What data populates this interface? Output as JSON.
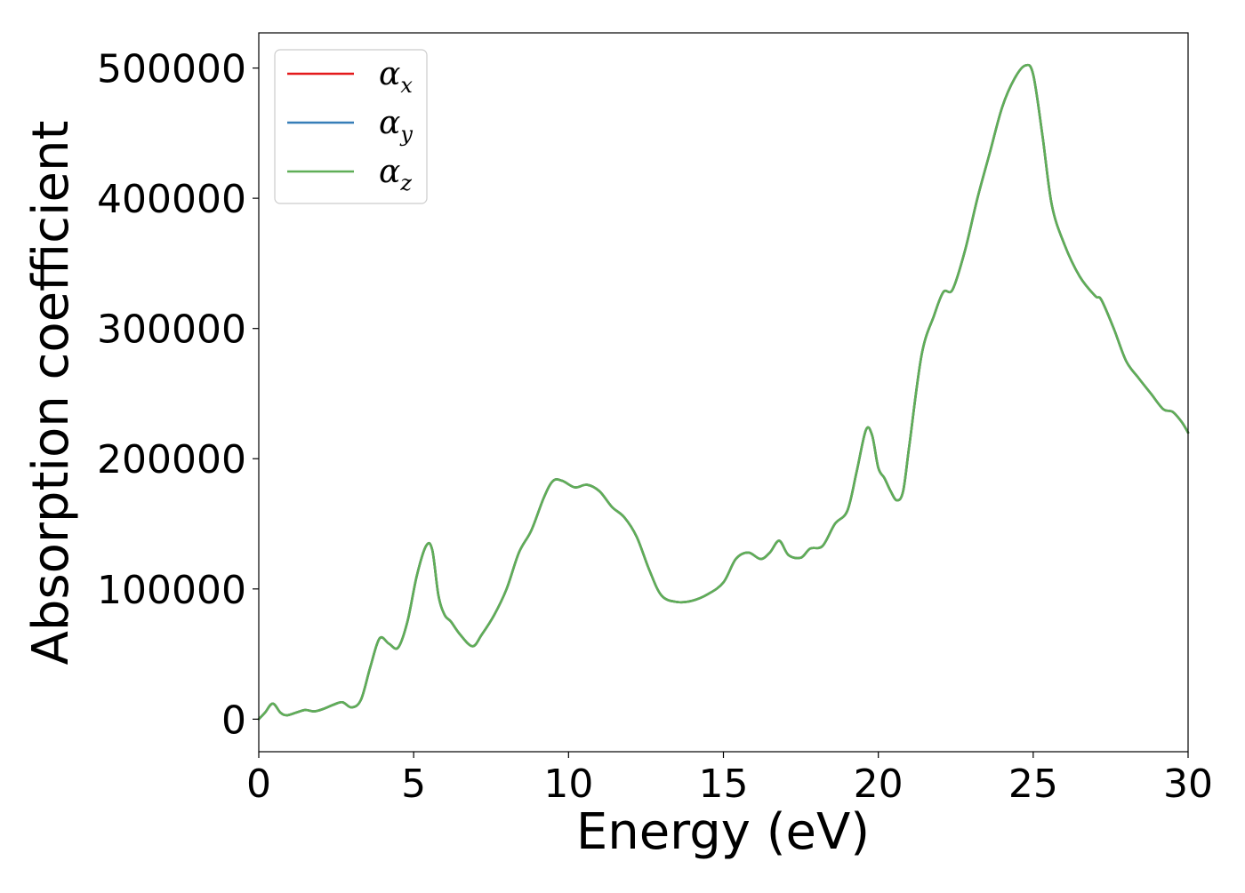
{
  "chart_data": {
    "type": "line",
    "xlabel": "Energy (eV)",
    "ylabel": "Absorption coefficient",
    "xlim": [
      0,
      30
    ],
    "ylim": [
      -25000,
      527000
    ],
    "xticks": [
      0,
      5,
      10,
      15,
      20,
      25,
      30
    ],
    "xtick_labels": [
      "0",
      "5",
      "10",
      "15",
      "20",
      "25",
      "30"
    ],
    "yticks": [
      0,
      100000,
      200000,
      300000,
      400000,
      500000
    ],
    "ytick_labels": [
      "0",
      "100000",
      "200000",
      "300000",
      "400000",
      "500000"
    ],
    "grid": false,
    "legend_position": "top-left",
    "x": [
      0,
      0.2,
      0.45,
      0.7,
      0.9,
      1.2,
      1.5,
      1.8,
      2.1,
      2.4,
      2.7,
      3.0,
      3.3,
      3.6,
      3.9,
      4.2,
      4.5,
      4.8,
      5.1,
      5.4,
      5.6,
      5.8,
      6.0,
      6.2,
      6.5,
      6.9,
      7.2,
      7.6,
      8.0,
      8.4,
      8.8,
      9.2,
      9.5,
      9.8,
      10.2,
      10.6,
      11.0,
      11.4,
      11.8,
      12.2,
      12.6,
      13.0,
      13.5,
      14.0,
      14.5,
      15.0,
      15.4,
      15.8,
      16.2,
      16.5,
      16.8,
      17.1,
      17.5,
      17.8,
      18.2,
      18.6,
      19.0,
      19.3,
      19.6,
      19.8,
      20.0,
      20.2,
      20.4,
      20.6,
      20.8,
      21.0,
      21.4,
      21.8,
      22.1,
      22.4,
      22.8,
      23.2,
      23.6,
      24.0,
      24.4,
      24.75,
      25.0,
      25.3,
      25.6,
      26.0,
      26.5,
      27.0,
      27.2,
      27.6,
      28.0,
      28.4,
      28.8,
      29.2,
      29.5,
      29.8,
      30.0
    ],
    "series": [
      {
        "name": "αx",
        "color": "#e41a1c",
        "values": [
          0,
          5000,
          12000,
          5000,
          3000,
          5000,
          7000,
          6000,
          8000,
          11000,
          13000,
          9000,
          15000,
          40000,
          62000,
          58000,
          55000,
          75000,
          110000,
          133000,
          130000,
          95000,
          80000,
          75000,
          65000,
          56000,
          65000,
          80000,
          100000,
          128000,
          145000,
          170000,
          183000,
          183000,
          178000,
          180000,
          175000,
          163000,
          155000,
          140000,
          115000,
          95000,
          90000,
          91000,
          96000,
          105000,
          123000,
          128000,
          123000,
          128000,
          137000,
          126000,
          124000,
          131000,
          133000,
          150000,
          160000,
          190000,
          222000,
          218000,
          193000,
          185000,
          175000,
          168000,
          175000,
          210000,
          280000,
          310000,
          328000,
          330000,
          360000,
          400000,
          435000,
          470000,
          492000,
          502000,
          495000,
          448000,
          395000,
          365000,
          340000,
          325000,
          322000,
          300000,
          275000,
          262000,
          250000,
          238000,
          236000,
          228000,
          220000
        ]
      },
      {
        "name": "αy",
        "color": "#377eb8",
        "values": [
          0,
          5000,
          12000,
          5000,
          3000,
          5000,
          7000,
          6000,
          8000,
          11000,
          13000,
          9000,
          15000,
          40000,
          62000,
          58000,
          55000,
          75000,
          110000,
          133000,
          130000,
          95000,
          80000,
          75000,
          65000,
          56000,
          65000,
          80000,
          100000,
          128000,
          145000,
          170000,
          183000,
          183000,
          178000,
          180000,
          175000,
          163000,
          155000,
          140000,
          115000,
          95000,
          90000,
          91000,
          96000,
          105000,
          123000,
          128000,
          123000,
          128000,
          137000,
          126000,
          124000,
          131000,
          133000,
          150000,
          160000,
          190000,
          222000,
          218000,
          193000,
          185000,
          175000,
          168000,
          175000,
          210000,
          280000,
          310000,
          328000,
          330000,
          360000,
          400000,
          435000,
          470000,
          492000,
          502000,
          495000,
          448000,
          395000,
          365000,
          340000,
          325000,
          322000,
          300000,
          275000,
          262000,
          250000,
          238000,
          236000,
          228000,
          220000
        ]
      },
      {
        "name": "αz",
        "color": "#5fae57",
        "values": [
          0,
          5000,
          12000,
          5000,
          3000,
          5000,
          7000,
          6000,
          8000,
          11000,
          13000,
          9000,
          15000,
          40000,
          62000,
          58000,
          55000,
          75000,
          110000,
          133000,
          130000,
          95000,
          80000,
          75000,
          65000,
          56000,
          65000,
          80000,
          100000,
          128000,
          145000,
          170000,
          183000,
          183000,
          178000,
          180000,
          175000,
          163000,
          155000,
          140000,
          115000,
          95000,
          90000,
          91000,
          96000,
          105000,
          123000,
          128000,
          123000,
          128000,
          137000,
          126000,
          124000,
          131000,
          133000,
          150000,
          160000,
          190000,
          222000,
          218000,
          193000,
          185000,
          175000,
          168000,
          175000,
          210000,
          280000,
          310000,
          328000,
          330000,
          360000,
          400000,
          435000,
          470000,
          492000,
          502000,
          495000,
          448000,
          395000,
          365000,
          340000,
          325000,
          322000,
          300000,
          275000,
          262000,
          250000,
          238000,
          236000,
          228000,
          220000
        ]
      }
    ],
    "legend": [
      {
        "symbol": "α",
        "subscript": "x",
        "color": "#e41a1c"
      },
      {
        "symbol": "α",
        "subscript": "y",
        "color": "#377eb8"
      },
      {
        "symbol": "α",
        "subscript": "z",
        "color": "#5fae57"
      }
    ]
  }
}
